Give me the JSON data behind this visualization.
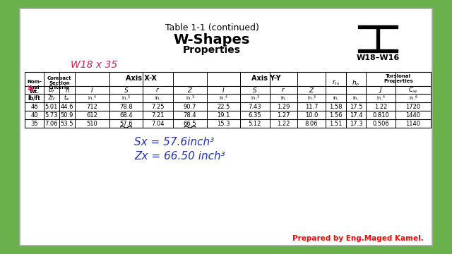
{
  "title_line1": "Table 1-1 (continued)",
  "title_line2": "W-Shapes",
  "title_line3": "Properties",
  "shape_label": "W18–W16",
  "annotation_label": "W18 x 35",
  "handwritten_sx": "Sx = 57.6inch³",
  "handwritten_zx": "Zx = 66.50 inch³",
  "credit": "Prepared by Eng.Maged Kamel.",
  "bg_outer": "#6ab04c",
  "bg_inner": "#ffffff",
  "table_data": [
    [
      "46",
      "5.01",
      "44.6",
      "712",
      "78.8",
      "7.25",
      "90.7",
      "22.5",
      "7.43",
      "1.29",
      "11.7",
      "1.58",
      "17.5",
      "1.22",
      "1720"
    ],
    [
      "40",
      "5.73",
      "50.9",
      "612",
      "68.4",
      "7.21",
      "78.4",
      "19.1",
      "6.35",
      "1.27",
      "10.0",
      "1.56",
      "17.4",
      "0.810",
      "1440"
    ],
    [
      "35",
      "7.06",
      "53.5",
      "510",
      "57.6",
      "7.04",
      "66.5",
      "15.3",
      "5.12",
      "1.22",
      "8.06",
      "1.51",
      "17.3",
      "0.506",
      "1140"
    ]
  ]
}
